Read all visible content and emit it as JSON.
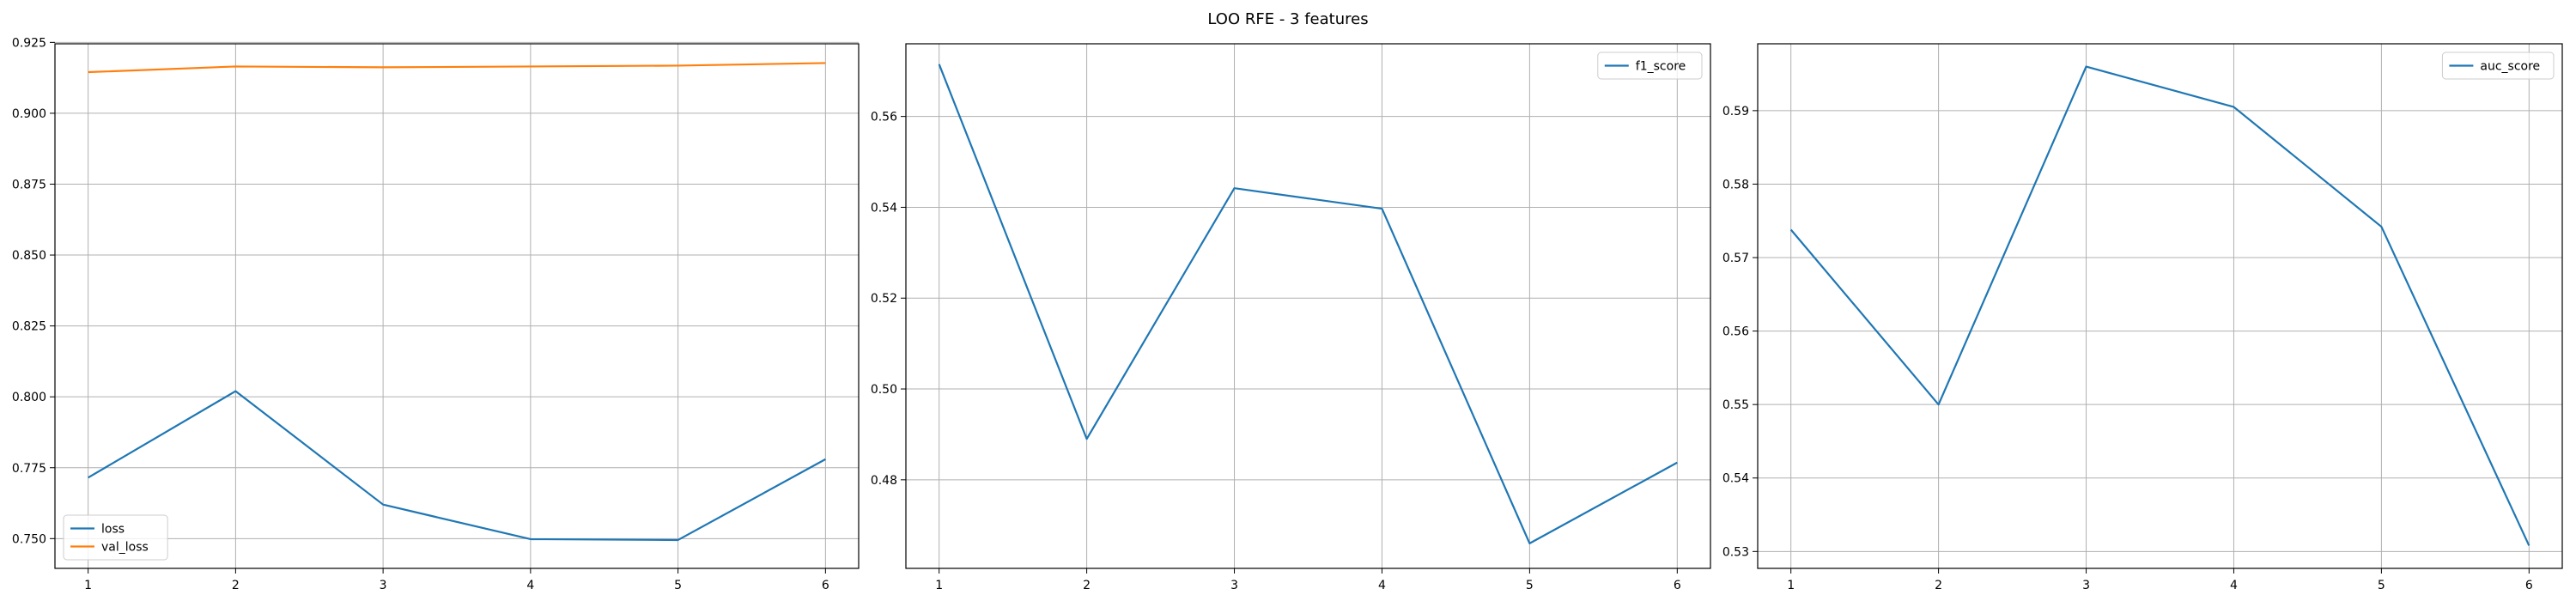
{
  "figure": {
    "title": "LOO RFE - 3 features"
  },
  "chart_data": [
    {
      "type": "line",
      "x": [
        1,
        2,
        3,
        4,
        5,
        6
      ],
      "xticks": [
        1,
        2,
        3,
        4,
        5,
        6
      ],
      "ylim": [
        0.7395,
        0.9245
      ],
      "yticks": [
        0.75,
        0.775,
        0.8,
        0.825,
        0.85,
        0.875,
        0.9,
        0.925
      ],
      "ytick_decimals": 3,
      "grid": true,
      "legend_position": "lower-left",
      "series": [
        {
          "name": "loss",
          "color": "#1f77b4",
          "values": [
            0.7715,
            0.802,
            0.762,
            0.7498,
            0.7495,
            0.778
          ]
        },
        {
          "name": "val_loss",
          "color": "#ff7f0e",
          "values": [
            0.9145,
            0.9165,
            0.9162,
            0.9165,
            0.9168,
            0.9177
          ]
        }
      ]
    },
    {
      "type": "line",
      "x": [
        1,
        2,
        3,
        4,
        5,
        6
      ],
      "xticks": [
        1,
        2,
        3,
        4,
        5,
        6
      ],
      "ylim": [
        0.4605,
        0.576
      ],
      "yticks": [
        0.48,
        0.5,
        0.52,
        0.54,
        0.56
      ],
      "ytick_decimals": 2,
      "grid": true,
      "legend_position": "upper-right",
      "series": [
        {
          "name": "f1_score",
          "color": "#1f77b4",
          "values": [
            0.5715,
            0.489,
            0.5442,
            0.5397,
            0.466,
            0.4838
          ]
        }
      ]
    },
    {
      "type": "line",
      "x": [
        1,
        2,
        3,
        4,
        5,
        6
      ],
      "xticks": [
        1,
        2,
        3,
        4,
        5,
        6
      ],
      "ylim": [
        0.5277,
        0.5991
      ],
      "yticks": [
        0.53,
        0.54,
        0.55,
        0.56,
        0.57,
        0.58,
        0.59
      ],
      "ytick_decimals": 2,
      "grid": true,
      "legend_position": "upper-right",
      "series": [
        {
          "name": "auc_score",
          "color": "#1f77b4",
          "values": [
            0.5738,
            0.55,
            0.596,
            0.5905,
            0.5742,
            0.5308
          ]
        }
      ]
    }
  ]
}
